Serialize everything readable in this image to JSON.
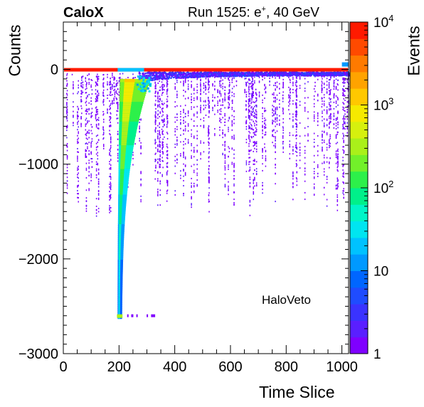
{
  "header": {
    "brand": "CaloX",
    "run_prefix": "Run 1525: e",
    "run_sup": "+",
    "run_suffix": ", 40 GeV"
  },
  "colors": {
    "palette": [
      "#7f00ff",
      "#5a1fff",
      "#3a33ff",
      "#1f4cff",
      "#0066ff",
      "#0099ff",
      "#00c2ff",
      "#00e5f0",
      "#00f5c8",
      "#00f08a",
      "#2df04a",
      "#72f02a",
      "#aaf01a",
      "#d6f00e",
      "#f5ea00",
      "#ffc800",
      "#ffa300",
      "#ff7a00",
      "#ff4a00",
      "#ff1a00"
    ]
  },
  "chart_data": {
    "type": "heatmap",
    "title": "",
    "xlabel": "Time Slice",
    "ylabel": "Counts",
    "zlabel": "Events",
    "xlim": [
      0,
      1024
    ],
    "ylim": [
      -3000,
      500
    ],
    "zlim": [
      1,
      10000
    ],
    "z_log": true,
    "x_ticks": [
      0,
      200,
      400,
      600,
      800,
      1000
    ],
    "y_ticks": [
      0,
      -1000,
      -2000,
      -3000
    ],
    "x_tick_labels": [
      "0",
      "200",
      "400",
      "600",
      "800",
      "1000"
    ],
    "y_tick_labels": [
      "0",
      "−1000",
      "−2000",
      "−3000"
    ],
    "z_tick_labels": [
      "1",
      "10",
      "10^2",
      "10^3",
      "10^4"
    ],
    "annotation": "HaloVeto",
    "pulse": {
      "baseline": 0,
      "onset_x": 195,
      "minimum_x": 205,
      "minimum_y": -2600,
      "after_bump_x": 290,
      "recovery_y": -100
    }
  }
}
